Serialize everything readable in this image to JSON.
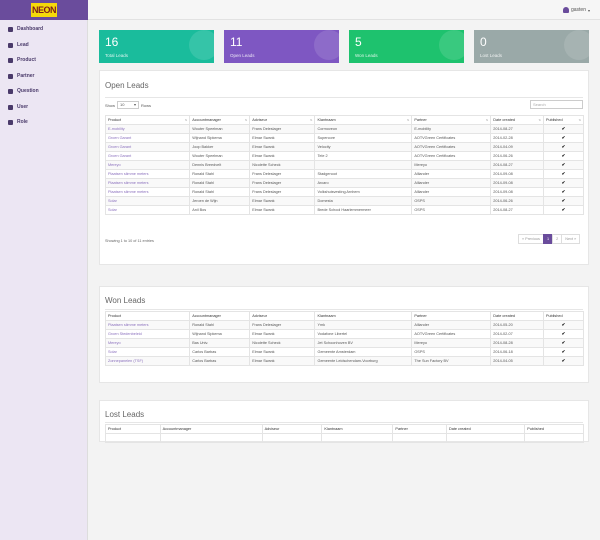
{
  "brand": {
    "logo_text": "NEON",
    "accent": "#6a4c9c"
  },
  "sidebar": {
    "items": [
      {
        "label": "Dashboard",
        "icon": "dashboard-icon"
      },
      {
        "label": "Lead",
        "icon": "lead-icon"
      },
      {
        "label": "Product",
        "icon": "product-icon"
      },
      {
        "label": "Partner",
        "icon": "partner-icon"
      },
      {
        "label": "Question",
        "icon": "question-icon"
      },
      {
        "label": "User",
        "icon": "user-icon"
      },
      {
        "label": "Role",
        "icon": "role-icon"
      }
    ]
  },
  "topbar": {
    "user": "gasten"
  },
  "stats": [
    {
      "value": "16",
      "label": "Total Leads",
      "color": "#1abc9c"
    },
    {
      "value": "11",
      "label": "Open Leads",
      "color": "#7e57c2"
    },
    {
      "value": "5",
      "label": "Won Leads",
      "color": "#1ec26e"
    },
    {
      "value": "0",
      "label": "Lost Leads",
      "color": "#9aa9a8"
    }
  ],
  "open": {
    "title": "Open Leads",
    "show_label": "Show",
    "length_value": "10",
    "entries_label": "Rows",
    "search_placeholder": "Search",
    "headers": [
      "Product",
      "Accountmanager",
      "Adviseur",
      "Klantnaam",
      "Partner",
      "Date created",
      "Published"
    ],
    "rows": [
      [
        "E-mobility",
        "Wouter Speelman",
        "Frans Deleslager",
        "Cormoveon",
        "E-mobility",
        "2014-08-27",
        "✔"
      ],
      [
        "Groen Garant",
        "Wijnand Sipkema",
        "Elmar Swank",
        "Supercore",
        "AOTVGreen Certificates",
        "2014-02-28",
        "✔"
      ],
      [
        "Groen Garant",
        "Joop Bakker",
        "Elmar Swank",
        "Velocity",
        "AOTVGreen Certificates",
        "2014-04-09",
        "✔"
      ],
      [
        "Groen Garant",
        "Wouter Speelman",
        "Elmar Swank",
        "Tele 2",
        "AOTVGreen Certificates",
        "2014-06-26",
        "✔"
      ],
      [
        "Mereyo",
        "Dennis Breedvelt",
        "Nicolette Scheck",
        "",
        "Mereyo",
        "2014-08-27",
        "✔"
      ],
      [
        "Plaatsen slimme meters",
        "Ronald Stahl",
        "Frans Deleslager",
        "Stadgenoot",
        "Alliander",
        "2014-09-08",
        "✔"
      ],
      [
        "Plaatsen slimme meters",
        "Ronald Stahl",
        "Frans Deleslager",
        "Arcaro",
        "Alliander",
        "2014-09-08",
        "✔"
      ],
      [
        "Plaatsen slimme meters",
        "Ronald Stahl",
        "Frans Deleslager",
        "Volkshuisvesting Arnhem",
        "Alliander",
        "2014-09-08",
        "✔"
      ],
      [
        "Solar",
        "Jeroen de Wijn",
        "Elmar Swank",
        "Domesta",
        "OSPS",
        "2014-06-26",
        "✔"
      ],
      [
        "Solar",
        "Anil Bos",
        "Elmar Swank",
        "Brede School Haarlemmermeer",
        "OSPS",
        "2014-08-27",
        "✔"
      ]
    ],
    "info": "Showing 1 to 10 of 11 entries",
    "pager": [
      "« Previous",
      "1",
      "2",
      "Next »"
    ]
  },
  "won": {
    "title": "Won Leads",
    "headers": [
      "Product",
      "Accountmanager",
      "Adviseur",
      "Klantnaam",
      "Partner",
      "Date created",
      "Published"
    ],
    "rows": [
      [
        "Plaatsen slimme meters",
        "Ronald Stahl",
        "Frans Deleslager",
        "Ymk",
        "Alliander",
        "2014-05-20",
        "✔"
      ],
      [
        "Groen Stedenbeleid",
        "Wijnand Sipkema",
        "Elmar Swank",
        "Vodafone Libertel",
        "AOTVGreen Certificates",
        "2014-02-07",
        "✔"
      ],
      [
        "Mereyo",
        "Bas Univ.",
        "Nicolette Scheck",
        "Jet Schoonhoven BV",
        "Mereyo",
        "2014-08-28",
        "✔"
      ],
      [
        "Solar",
        "Carlos Barbas",
        "Elmar Swank",
        "Gemeente Amsterdam",
        "OSPS",
        "2014-06-18",
        "✔"
      ],
      [
        "Zonnepanelen (TSF)",
        "Carlos Barbas",
        "Elmar Swank",
        "Gemeente Leidschendam-Voorburg",
        "The Sun Factory BV",
        "2014-04-05",
        "✔"
      ]
    ]
  },
  "lost": {
    "title": "Lost Leads",
    "headers": [
      "Product",
      "Accountmanager",
      "Adviseur",
      "Klantnaam",
      "Partner",
      "Date created",
      "Published"
    ]
  }
}
